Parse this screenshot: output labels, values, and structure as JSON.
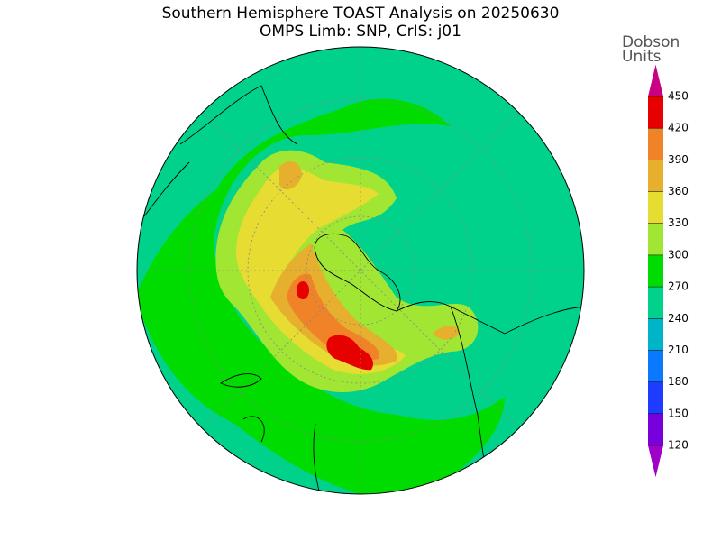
{
  "title_lines": [
    "Southern Hemisphere TOAST Analysis on 20250630",
    "OMPS Limb: SNP, CrIS: j01"
  ],
  "colorbar": {
    "label_lines": [
      "Dobson",
      "Units"
    ],
    "ticks": [
      120,
      150,
      180,
      210,
      240,
      270,
      300,
      330,
      360,
      390,
      420,
      450
    ],
    "under_color": "#a000c8",
    "colors": [
      "#7800dc",
      "#1e3cff",
      "#0a78ff",
      "#00b4c8",
      "#00d28c",
      "#00dc00",
      "#a0e632",
      "#e6dc32",
      "#e6af2d",
      "#f08228",
      "#e60000"
    ],
    "over_color": "#c80082"
  }
}
